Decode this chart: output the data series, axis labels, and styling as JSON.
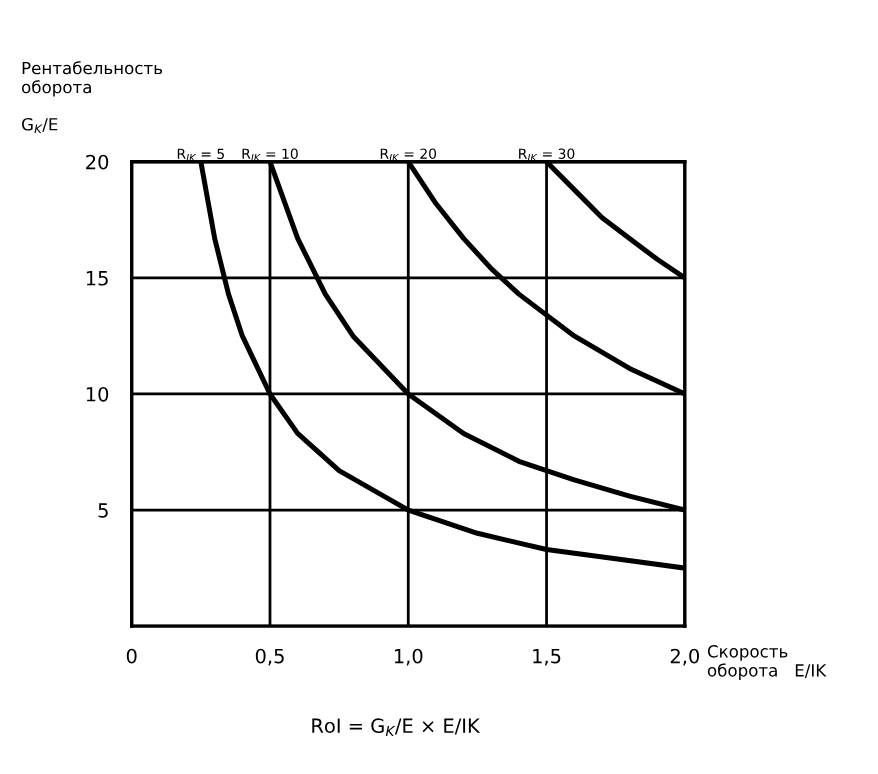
{
  "chart_data": {
    "type": "line",
    "xlabel": "Скорость\nоборота   E/IK",
    "ylabel": "Рентабельность\nоборота\n\nG$_{K}$/E",
    "annotations": [
      "RoI = G$_{K}$/E × E/IK"
    ],
    "xlim": [
      0,
      2.0
    ],
    "ylim": [
      0,
      20
    ],
    "xticks": [
      0,
      {
        "value": 0.5,
        "label": "0,5"
      },
      {
        "value": 1.0,
        "label": "1,0"
      },
      {
        "value": 1.5,
        "label": "1,5"
      },
      {
        "value": 2.0,
        "label": "2,0"
      }
    ],
    "yticks": [
      {
        "value": 0,
        "label": null
      },
      5,
      10,
      15,
      20
    ],
    "grid": true,
    "legend": false,
    "marker": "none",
    "line_style": "solid",
    "series": [
      {
        "name": "R$_{IK}$ = 5",
        "color": "#000000",
        "x": [
          0.25,
          0.3,
          0.35,
          0.4,
          0.5,
          0.6,
          0.75,
          1.0,
          1.25,
          1.5,
          1.75,
          2.0
        ],
        "values": [
          20,
          16.7,
          14.3,
          12.5,
          10,
          8.3,
          6.7,
          5,
          4,
          3.3,
          2.9,
          2.5
        ]
      },
      {
        "name": "R$_{IK}$ = 10",
        "color": "#000000",
        "x": [
          0.5,
          0.6,
          0.7,
          0.8,
          1.0,
          1.2,
          1.4,
          1.6,
          1.8,
          2.0
        ],
        "values": [
          20,
          16.7,
          14.3,
          12.5,
          10,
          8.3,
          7.1,
          6.3,
          5.6,
          5
        ]
      },
      {
        "name": "R$_{IK}$ = 20",
        "color": "#000000",
        "x": [
          1.0,
          1.1,
          1.2,
          1.3,
          1.4,
          1.6,
          1.8,
          2.0
        ],
        "values": [
          20,
          18.2,
          16.7,
          15.4,
          14.3,
          12.5,
          11.1,
          10
        ]
      },
      {
        "name": "R$_{IK}$ = 30",
        "color": "#000000",
        "x": [
          1.5,
          1.6,
          1.7,
          1.8,
          1.9,
          2.0
        ],
        "values": [
          20,
          18.8,
          17.6,
          16.7,
          15.8,
          15
        ]
      }
    ]
  }
}
